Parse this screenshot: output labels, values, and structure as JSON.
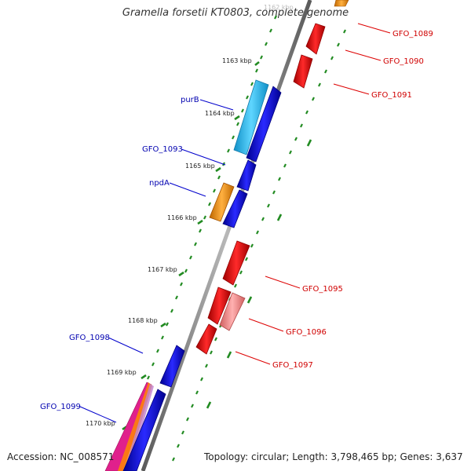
{
  "title": "Gramella forsetii KT0803, complete genome",
  "footer": {
    "accession": "Accession: NC_008571",
    "summary": "Topology: circular; Length: 3,798,465 bp; Genes: 3,637"
  },
  "scale_ticks": [
    "1162 kbp",
    "1163 kbp",
    "1164 kbp",
    "1165 kbp",
    "1166 kbp",
    "1167 kbp",
    "1168 kbp",
    "1169 kbp",
    "1170 kbp"
  ],
  "genes_left": [
    "purB",
    "GFO_1093",
    "npdA",
    "GFO_1098",
    "GFO_1099"
  ],
  "genes_right": [
    "GFO_1089",
    "GFO_1090",
    "GFO_1091",
    "GFO_1095",
    "GFO_1096",
    "GFO_1097"
  ],
  "colors": {
    "forward_strand": "#0000e6",
    "reverse_strand": "#e60000",
    "purB": "#22bbee",
    "npdA": "#ff9922",
    "GFO_1096": "#f08080",
    "GFO_1099": [
      "#e0208c",
      "#ff8800",
      "#c080d0"
    ],
    "backbone": "#8a8a8a",
    "tick_marks": "#228b22",
    "left_label_text": "#0000b0",
    "right_label_text": "#d00000"
  }
}
